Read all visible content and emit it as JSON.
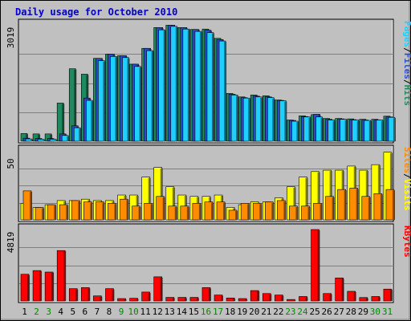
{
  "title": "Daily usage for October 2010",
  "colors": {
    "background": "#c0c0c0",
    "panel": "#c0c0c0",
    "title": "#0000cc",
    "hits": "#1f8a5f",
    "files": "#2a4ccc",
    "pages": "#1fd0ff",
    "visits": "#ffff00",
    "sites": "#ff8c00",
    "kbytes": "#ff0000",
    "weekend_label": "#008800"
  },
  "chart_data": [
    {
      "type": "bar",
      "name": "hits-files-pages",
      "y_max_label": "3019",
      "ylim": [
        0,
        3019
      ],
      "grid": true,
      "legend": [
        {
          "name": "Hits",
          "color": "#1f8a5f"
        },
        {
          "name": "Files",
          "color": "#2a4ccc"
        },
        {
          "name": "Pages",
          "color": "#1fd0ff"
        }
      ],
      "series": [
        {
          "name": "Hits",
          "values": [
            200,
            190,
            190,
            990,
            1880,
            1740,
            2150,
            2260,
            2220,
            2000,
            2410,
            2950,
            3010,
            2950,
            2900,
            2910,
            2670,
            1240,
            1150,
            1200,
            1180,
            1070,
            550,
            660,
            690,
            590,
            590,
            580,
            570,
            570,
            650
          ]
        },
        {
          "name": "Files",
          "values": [
            80,
            70,
            70,
            190,
            400,
            1120,
            2150,
            2260,
            2220,
            2000,
            2410,
            2950,
            3010,
            2950,
            2900,
            2880,
            2640,
            1220,
            1130,
            1170,
            1150,
            1060,
            540,
            640,
            700,
            570,
            580,
            560,
            550,
            550,
            630
          ]
        },
        {
          "name": "Pages",
          "values": [
            60,
            50,
            50,
            150,
            350,
            1060,
            2090,
            2200,
            2170,
            1940,
            2350,
            2890,
            2980,
            2910,
            2850,
            2820,
            2600,
            1200,
            1120,
            1150,
            1130,
            1050,
            520,
            630,
            630,
            550,
            570,
            550,
            540,
            550,
            620
          ]
        }
      ]
    },
    {
      "type": "bar",
      "name": "visits-sites",
      "y_max_label": "50",
      "ylim": [
        0,
        50
      ],
      "grid": true,
      "legend": [
        {
          "name": "Visits",
          "color": "#ffff00"
        },
        {
          "name": "Sites",
          "color": "#ff8c00"
        }
      ],
      "series": [
        {
          "name": "Visits",
          "values": [
            12,
            9,
            11,
            14,
            14,
            15,
            14,
            14,
            18,
            18,
            31,
            38,
            24,
            18,
            17,
            17,
            18,
            9,
            11,
            13,
            13,
            16,
            24,
            31,
            35,
            36,
            36,
            39,
            36,
            40,
            49
          ]
        },
        {
          "name": "Sites",
          "values": [
            21,
            9,
            11,
            11,
            14,
            13,
            13,
            12,
            15,
            10,
            12,
            17,
            10,
            10,
            12,
            13,
            13,
            7,
            12,
            12,
            13,
            14,
            10,
            10,
            12,
            17,
            22,
            23,
            17,
            19,
            22
          ]
        }
      ]
    },
    {
      "type": "bar",
      "name": "kbytes",
      "y_max_label": "4819",
      "ylim": [
        0,
        4819
      ],
      "grid": true,
      "legend": [
        {
          "name": "KBytes",
          "color": "#ff0000"
        }
      ],
      "series": [
        {
          "name": "KBytes",
          "values": [
            1800,
            2050,
            1950,
            3400,
            830,
            900,
            340,
            830,
            160,
            180,
            600,
            1630,
            240,
            240,
            240,
            900,
            400,
            200,
            160,
            700,
            500,
            400,
            100,
            300,
            4819,
            500,
            1550,
            650,
            230,
            300,
            800
          ]
        }
      ]
    }
  ],
  "days": [
    "1",
    "2",
    "3",
    "4",
    "5",
    "6",
    "7",
    "8",
    "9",
    "10",
    "11",
    "12",
    "13",
    "14",
    "15",
    "16",
    "17",
    "18",
    "19",
    "20",
    "21",
    "22",
    "23",
    "24",
    "25",
    "26",
    "27",
    "28",
    "29",
    "30",
    "31"
  ],
  "weekend_days": [
    2,
    3,
    9,
    10,
    16,
    17,
    23,
    24,
    30,
    31
  ]
}
